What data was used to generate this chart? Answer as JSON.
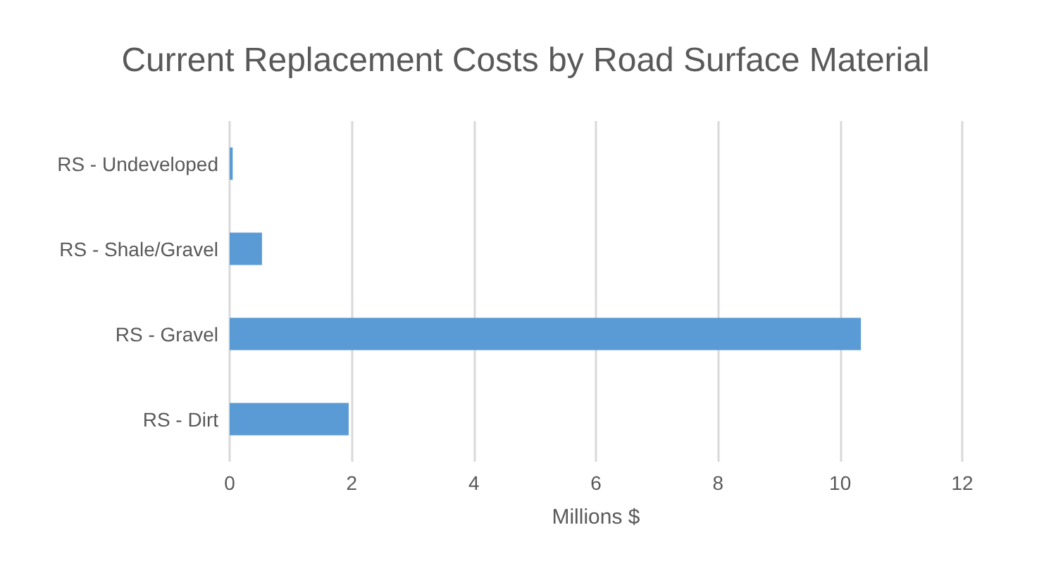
{
  "chart_data": {
    "type": "bar",
    "orientation": "horizontal",
    "title": "Current Replacement Costs by Road Surface Material",
    "xlabel": "Millions $",
    "categories": [
      "RS - Undeveloped",
      "RS - Shale/Gravel",
      "RS - Gravel",
      "RS - Dirt"
    ],
    "values": [
      0.05,
      0.53,
      10.34,
      1.95
    ],
    "color": "#5b9bd5",
    "xlim": [
      0,
      12
    ],
    "xticks": [
      0,
      2,
      4,
      6,
      8,
      10,
      12
    ],
    "grid": "x"
  }
}
